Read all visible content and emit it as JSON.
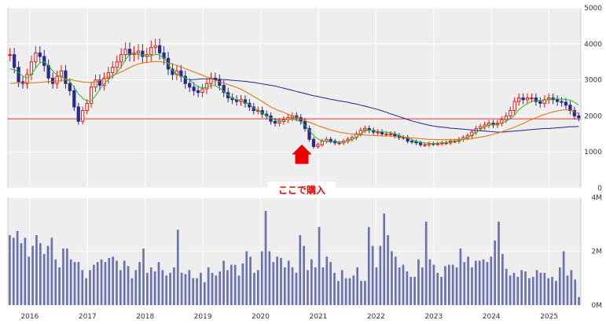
{
  "chart_data": [
    {
      "type": "candlestick",
      "ylim": [
        0,
        5000
      ],
      "y_ticks": [
        "0",
        "1000",
        "2000",
        "3000",
        "4000",
        "5000"
      ],
      "x_ticks": [
        "2016",
        "2017",
        "2018",
        "2019",
        "2020",
        "2021",
        "2022",
        "2023",
        "2024",
        "2025"
      ],
      "start": 2015.62,
      "end": 2025.55,
      "hline": 1920,
      "close": [
        3700,
        3350,
        2950,
        2900,
        3150,
        3500,
        3750,
        3650,
        3400,
        3050,
        2900,
        3100,
        3250,
        2900,
        2700,
        2250,
        1850,
        2150,
        2350,
        2800,
        3000,
        2850,
        3050,
        3200,
        3350,
        3500,
        3700,
        3850,
        3700,
        3750,
        3800,
        3650,
        3700,
        3900,
        3950,
        3750,
        3600,
        3300,
        3150,
        3250,
        3100,
        2900,
        2800,
        2700,
        2650,
        2750,
        2900,
        3050,
        3000,
        2850,
        2650,
        2500,
        2450,
        2400,
        2450,
        2350,
        2250,
        2150,
        2150,
        2050,
        2000,
        1850,
        1800,
        1850,
        1900,
        1950,
        2000,
        1950,
        1850,
        1650,
        1350,
        1150,
        1200,
        1300,
        1350,
        1300,
        1250,
        1250,
        1300,
        1350,
        1400,
        1500,
        1600,
        1650,
        1600,
        1550,
        1550,
        1500,
        1500,
        1500,
        1450,
        1400,
        1400,
        1300,
        1280,
        1250,
        1200,
        1200,
        1230,
        1220,
        1230,
        1250,
        1250,
        1300,
        1300,
        1350,
        1400,
        1450,
        1550,
        1650,
        1700,
        1750,
        1800,
        1750,
        1800,
        1900,
        2000,
        2150,
        2400,
        2500,
        2450,
        2500,
        2500,
        2400,
        2350,
        2450,
        2500,
        2450,
        2400,
        2380,
        2300,
        2150,
        2000,
        1950
      ],
      "ma_short": [
        3300,
        3290,
        3200,
        3110,
        3060,
        3150,
        3330,
        3480,
        3500,
        3410,
        3250,
        3130,
        3080,
        3040,
        2960,
        2790,
        2610,
        2490,
        2410,
        2420,
        2560,
        2740,
        2890,
        3010,
        3090,
        3210,
        3360,
        3560,
        3720,
        3730,
        3700,
        3690,
        3660,
        3660,
        3710,
        3690,
        3610,
        3440,
        3260,
        3160,
        3100,
        3050,
        2990,
        2890,
        2810,
        2780,
        2790,
        2850,
        2840,
        2780,
        2680,
        2580,
        2490,
        2450,
        2410,
        2360,
        2320,
        2220,
        2150,
        2080,
        2010,
        1940,
        1890,
        1880,
        1890,
        1900,
        1910,
        1890,
        1840,
        1740,
        1600,
        1460,
        1360,
        1310,
        1290,
        1280,
        1280,
        1280,
        1290,
        1310,
        1340,
        1410,
        1500,
        1580,
        1610,
        1590,
        1570,
        1560,
        1550,
        1540,
        1500,
        1460,
        1420,
        1380,
        1340,
        1300,
        1270,
        1250,
        1240,
        1230,
        1240,
        1250,
        1260,
        1280,
        1300,
        1320,
        1350,
        1400,
        1460,
        1540,
        1620,
        1690,
        1740,
        1760,
        1780,
        1810,
        1850,
        1920,
        2030,
        2170,
        2270,
        2350,
        2400,
        2430,
        2430,
        2440,
        2460,
        2470,
        2470,
        2460,
        2450,
        2440,
        2380,
        2300
      ],
      "ma_mid": [
        2900,
        2910,
        2920,
        2920,
        2920,
        2920,
        2920,
        2930,
        2940,
        2950,
        2960,
        2970,
        2980,
        3000,
        3010,
        2990,
        2960,
        2940,
        2930,
        2930,
        2950,
        2990,
        3030,
        3080,
        3120,
        3170,
        3220,
        3280,
        3340,
        3400,
        3440,
        3470,
        3490,
        3500,
        3510,
        3510,
        3490,
        3470,
        3440,
        3400,
        3360,
        3310,
        3270,
        3220,
        3180,
        3130,
        3080,
        3040,
        2990,
        2950,
        2910,
        2870,
        2830,
        2790,
        2740,
        2680,
        2610,
        2540,
        2470,
        2400,
        2320,
        2250,
        2190,
        2140,
        2100,
        2050,
        2000,
        1960,
        1910,
        1870,
        1820,
        1780,
        1730,
        1690,
        1650,
        1610,
        1580,
        1550,
        1530,
        1510,
        1500,
        1490,
        1480,
        1470,
        1460,
        1460,
        1450,
        1450,
        1440,
        1440,
        1430,
        1420,
        1410,
        1400,
        1390,
        1380,
        1370,
        1360,
        1350,
        1350,
        1340,
        1340,
        1340,
        1340,
        1340,
        1340,
        1350,
        1360,
        1370,
        1390,
        1410,
        1430,
        1460,
        1490,
        1520,
        1560,
        1600,
        1640,
        1690,
        1740,
        1790,
        1850,
        1900,
        1950,
        2000,
        2040,
        2080,
        2110,
        2140,
        2160,
        2170,
        2160,
        2120,
        2050
      ],
      "ma_long": [
        null,
        null,
        null,
        null,
        null,
        null,
        null,
        null,
        null,
        null,
        null,
        null,
        null,
        null,
        null,
        null,
        null,
        null,
        null,
        null,
        null,
        null,
        null,
        null,
        null,
        null,
        null,
        null,
        null,
        null,
        null,
        null,
        null,
        null,
        null,
        null,
        null,
        null,
        null,
        null,
        null,
        null,
        3000,
        3010,
        3020,
        3030,
        3030,
        3030,
        3020,
        3020,
        3010,
        3000,
        2990,
        2980,
        2970,
        2960,
        2940,
        2930,
        2910,
        2890,
        2870,
        2850,
        2830,
        2800,
        2770,
        2740,
        2710,
        2680,
        2650,
        2620,
        2590,
        2560,
        2540,
        2510,
        2490,
        2460,
        2440,
        2420,
        2400,
        2380,
        2350,
        2330,
        2300,
        2270,
        2240,
        2210,
        2180,
        2140,
        2100,
        2060,
        2020,
        1980,
        1940,
        1900,
        1860,
        1830,
        1800,
        1770,
        1740,
        1720,
        1700,
        1690,
        1680,
        1660,
        1650,
        1640,
        1630,
        1620,
        1610,
        1600,
        1590,
        1580,
        1570,
        1560,
        1550,
        1550,
        1560,
        1570,
        1580,
        1590,
        1600,
        1610,
        1620,
        1630,
        1640,
        1650,
        1650,
        1660,
        1670,
        1680,
        1690,
        1700,
        1700,
        1710
      ]
    },
    {
      "type": "bar",
      "ylim": [
        0,
        4000000
      ],
      "y_ticks": [
        "0M",
        "2M",
        "4M"
      ],
      "values_m": [
        2.6,
        2.5,
        2.75,
        2.3,
        2.5,
        1.8,
        2.2,
        2.6,
        2.3,
        1.9,
        2.2,
        2.5,
        1.7,
        1.4,
        2.1,
        2.1,
        1.7,
        1.6,
        1.6,
        1.3,
        1.0,
        1.3,
        1.5,
        1.6,
        1.7,
        1.6,
        1.75,
        1.8,
        1.65,
        1.3,
        1.65,
        1.45,
        1.0,
        1.3,
        1.6,
        2.1,
        1.2,
        1.4,
        1.25,
        1.6,
        1.3,
        1.1,
        1.2,
        1.4,
        2.8,
        1.2,
        1.15,
        1.3,
        1.0,
        1.0,
        1.2,
        0.85,
        1.4,
        1.2,
        1.1,
        1.25,
        1.65,
        1.3,
        1.5,
        1.5,
        1.1,
        1.55,
        2.0,
        1.8,
        1.2,
        1.3,
        2.0,
        3.5,
        2.0,
        1.6,
        1.8,
        1.75,
        1.4,
        1.65,
        1.4,
        1.2,
        2.6,
        2.2,
        1.3,
        1.7,
        1.4,
        2.9,
        1.4,
        1.8,
        1.6,
        1.2,
        0.9,
        1.3,
        1.0,
        1.0,
        1.1,
        1.4,
        0.9,
        0.9,
        2.9,
        2.2,
        1.4,
        2.2,
        3.4,
        2.6,
        2.0,
        1.8,
        1.4,
        1.5,
        1.25,
        1.05,
        1.05,
        1.7,
        1.4,
        3.1,
        1.7,
        1.5,
        1.2,
        1.05,
        1.45,
        1.5,
        1.5,
        1.4,
        2.1,
        1.6,
        1.8,
        1.4,
        1.65,
        1.65,
        1.7,
        1.6,
        1.8,
        2.4,
        3.1,
        1.9,
        1.35,
        1.1,
        1.2,
        1.05,
        1.3,
        1.25,
        1.0,
        1.05,
        1.3,
        1.2,
        1.2,
        1.0,
        1.05,
        0.9,
        1.4,
        2.0,
        1.1,
        1.3,
        0.95,
        0.3
      ],
      "colors": {
        "up": "#ee1111",
        "down": "#2b2b8e",
        "ma_short": "#22bb22",
        "ma_mid": "#e07000",
        "ma_long": "#222299",
        "hline": "#ee3333",
        "volume": "#6b72b0",
        "grid": "#ffffff",
        "plot_bg": "#eeeeee"
      }
    }
  ],
  "annotation": {
    "text": "ここで購入"
  }
}
